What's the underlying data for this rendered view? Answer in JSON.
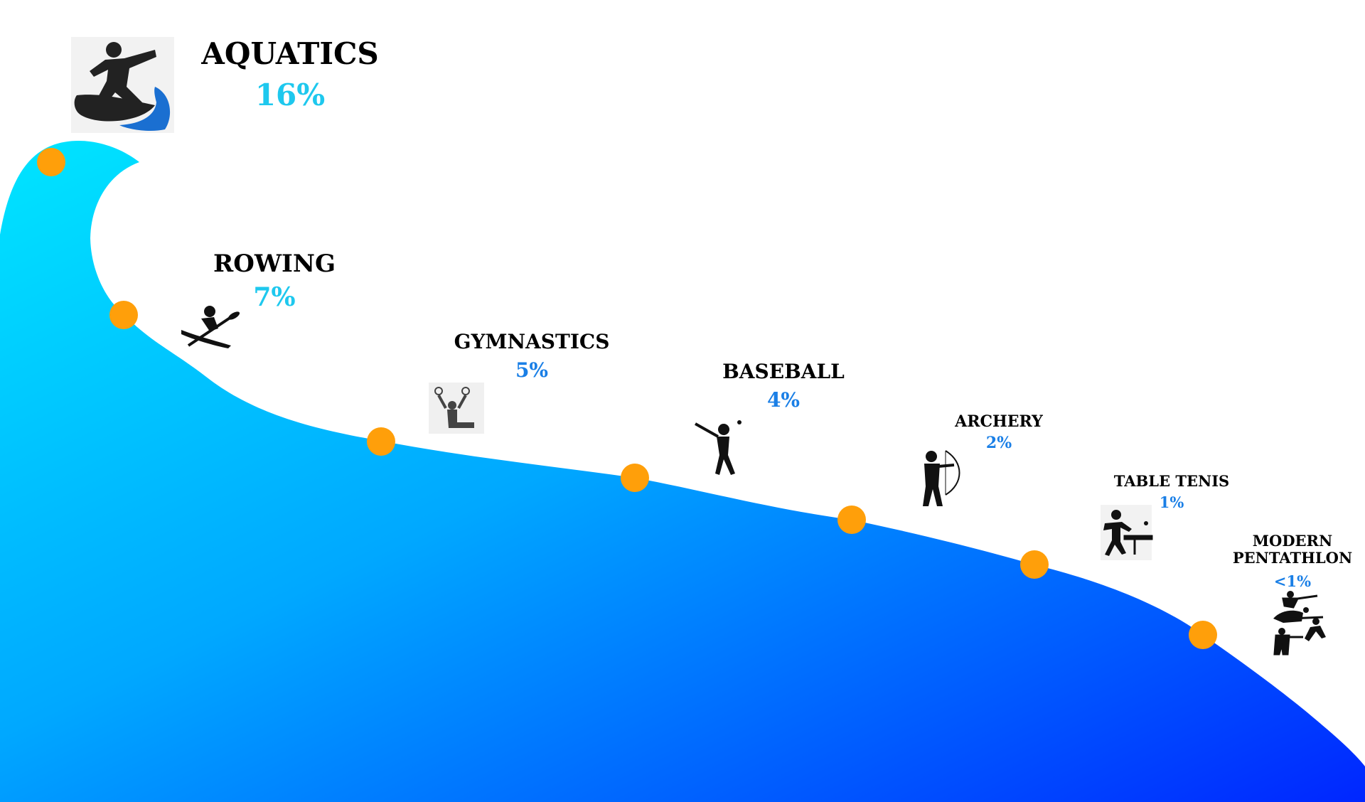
{
  "chart_data": {
    "type": "area",
    "categories": [
      "AQUATICS",
      "ROWING",
      "GYMNASTICS",
      "BASEBALL",
      "ARCHERY",
      "TABLE TENIS",
      "MODERN PENTATHLON"
    ],
    "value_labels": [
      "16%",
      "7%",
      "5%",
      "4%",
      "2%",
      "1%",
      "<1%"
    ],
    "values": [
      16,
      7,
      5,
      4,
      2,
      1,
      0.5
    ],
    "icons": [
      "surfing-icon",
      "kayak-icon",
      "gymnastics-rings-icon",
      "baseball-batter-icon",
      "archery-icon",
      "table-tennis-icon",
      "modern-pentathlon-icon"
    ]
  },
  "colors": {
    "wave_light": "#00e5ff",
    "wave_mid": "#00a8ff",
    "wave_dark": "#0026ff",
    "marker": "#ff9f0a",
    "label": "#000000",
    "pct_light": "#1ec8ee",
    "pct_dark": "#1a7fe6",
    "icon": "#111111"
  }
}
